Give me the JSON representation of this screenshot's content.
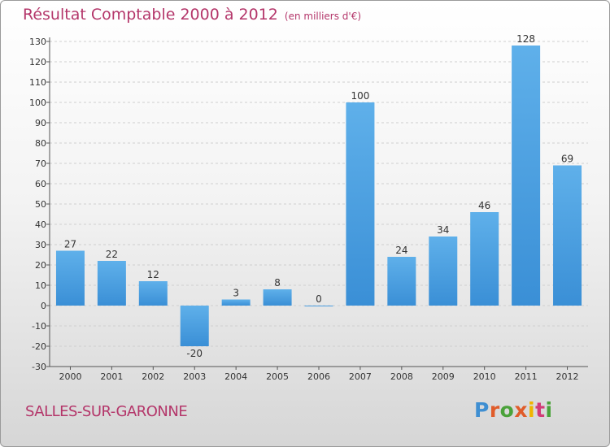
{
  "header": {
    "title": "Résultat Comptable 2000 à 2012",
    "unit": "(en milliers d'€)"
  },
  "footer": {
    "town": "SALLES-SUR-GARONNE",
    "logo": "Proxiti"
  },
  "colors": {
    "bar": "#3a8fd6",
    "bar_light": "#5fb0ea",
    "title": "#b4366a",
    "grid": "#cfcfcf"
  },
  "chart_data": {
    "type": "bar",
    "title": "Résultat Comptable 2000 à 2012",
    "xlabel": "",
    "ylabel": "",
    "ylim": [
      -30,
      130
    ],
    "ytick_step": 10,
    "grid": true,
    "categories": [
      "2000",
      "2001",
      "2002",
      "2003",
      "2004",
      "2005",
      "2006",
      "2007",
      "2008",
      "2009",
      "2010",
      "2011",
      "2012"
    ],
    "values": [
      27,
      22,
      12,
      -20,
      3,
      8,
      0,
      100,
      24,
      34,
      46,
      128,
      69
    ]
  }
}
